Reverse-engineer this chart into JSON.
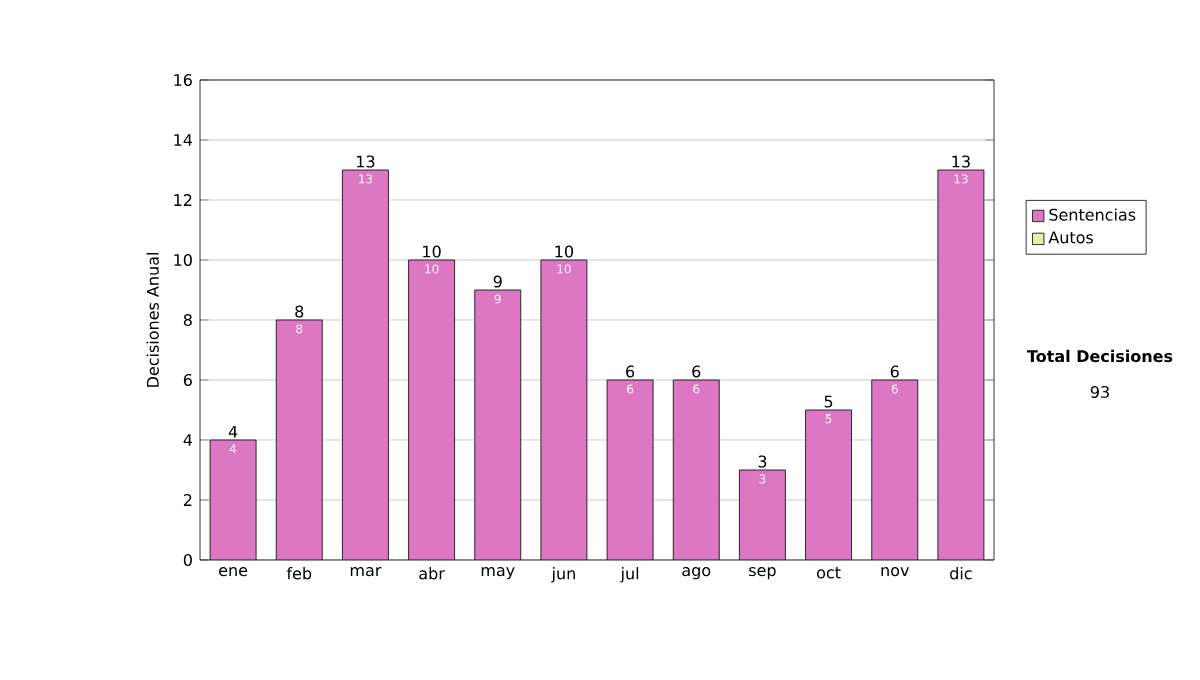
{
  "chart_data": {
    "type": "bar",
    "stacked": true,
    "ylabel": "Decisiones Anual",
    "categories": [
      "ene",
      "feb",
      "mar",
      "abr",
      "may",
      "jun",
      "jul",
      "ago",
      "sep",
      "oct",
      "nov",
      "dic"
    ],
    "series": [
      {
        "name": "Sentencias",
        "color": "#dd77c4",
        "values": [
          4,
          8,
          13,
          10,
          9,
          10,
          6,
          6,
          3,
          5,
          6,
          13
        ],
        "value_labels": [
          "4",
          "8",
          "13",
          "10",
          "9",
          "10",
          "6",
          "6",
          "3",
          "5",
          "6",
          "13"
        ]
      },
      {
        "name": "Autos",
        "color": "#e8eeaa",
        "values": [
          0,
          0,
          0,
          0,
          0,
          0,
          0,
          0,
          0,
          0,
          0,
          0
        ]
      }
    ],
    "totals": [
      "4",
      "8",
      "13",
      "10",
      "9",
      "10",
      "6",
      "6",
      "3",
      "5",
      "6",
      "13"
    ],
    "ylim": [
      0,
      16
    ],
    "yticks": [
      0,
      2,
      4,
      6,
      8,
      10,
      12,
      14,
      16
    ],
    "grid": "y",
    "legend": "right",
    "annotations": [
      "Total Decisiones",
      "93"
    ]
  }
}
